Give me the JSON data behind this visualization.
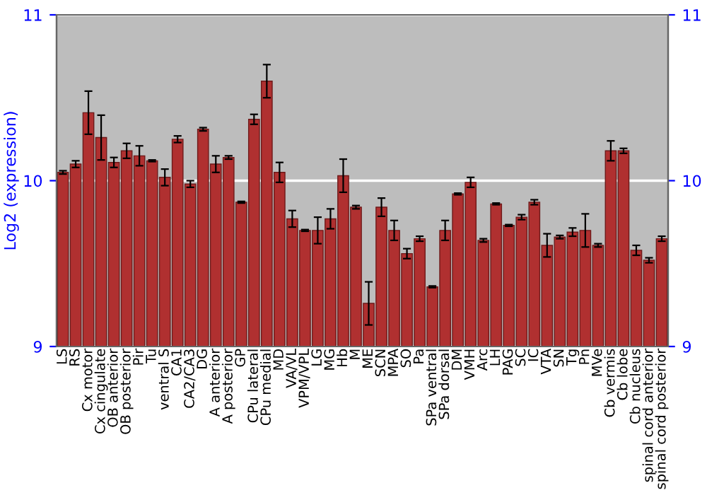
{
  "chart_data": {
    "type": "bar",
    "ylabel": "Log2 (expression)",
    "categories": [
      "LS",
      "RS",
      "Cx motor",
      "Cx cingulate",
      "OB anterior",
      "OB posterior",
      "Pir",
      "Tu",
      "ventral S",
      "CA1",
      "CA2/CA3",
      "DG",
      "A anterior",
      "A posterior",
      "GP",
      "CPu lateral",
      "CPu medial",
      "MD",
      "VA/VL",
      "VPM/VPL",
      "LG",
      "MG",
      "Hb",
      "M",
      "ME",
      "SCN",
      "MPA",
      "SO",
      "Pa",
      "SPa ventral",
      "SPa dorsal",
      "DM",
      "VMH",
      "Arc",
      "LH",
      "PAG",
      "SC",
      "IC",
      "VTA",
      "SN",
      "Tg",
      "Pn",
      "MVe",
      "Cb vermis",
      "Cb lobe",
      "Cb nucleus",
      "spinal cord anterior",
      "spinal cord posterior"
    ],
    "values": [
      10.05,
      10.1,
      10.41,
      10.26,
      10.11,
      10.18,
      10.15,
      10.12,
      10.02,
      10.25,
      9.98,
      10.31,
      10.1,
      10.14,
      9.87,
      10.37,
      10.6,
      10.05,
      9.77,
      9.7,
      9.7,
      9.77,
      10.03,
      9.84,
      9.26,
      9.84,
      9.7,
      9.56,
      9.65,
      9.36,
      9.7,
      9.92,
      9.99,
      9.64,
      9.86,
      9.73,
      9.78,
      9.87,
      9.61,
      9.66,
      9.69,
      9.7,
      9.61,
      10.18,
      10.18,
      9.58,
      9.52,
      9.65
    ],
    "errors": [
      0.01,
      0.02,
      0.13,
      0.135,
      0.03,
      0.045,
      0.06,
      0.005,
      0.05,
      0.02,
      0.02,
      0.01,
      0.05,
      0.01,
      0.005,
      0.03,
      0.1,
      0.06,
      0.05,
      0.005,
      0.08,
      0.06,
      0.1,
      0.01,
      0.13,
      0.055,
      0.06,
      0.03,
      0.015,
      0.005,
      0.06,
      0.005,
      0.03,
      0.01,
      0.005,
      0.005,
      0.015,
      0.015,
      0.07,
      0.01,
      0.025,
      0.1,
      0.01,
      0.06,
      0.015,
      0.03,
      0.015,
      0.015
    ],
    "color": "#b03030",
    "ylim": [
      9,
      11
    ],
    "yticks": [
      9,
      10,
      11
    ],
    "y2lim": [
      9,
      11
    ],
    "y2ticks": [
      9,
      10,
      11
    ],
    "grid": "y"
  }
}
